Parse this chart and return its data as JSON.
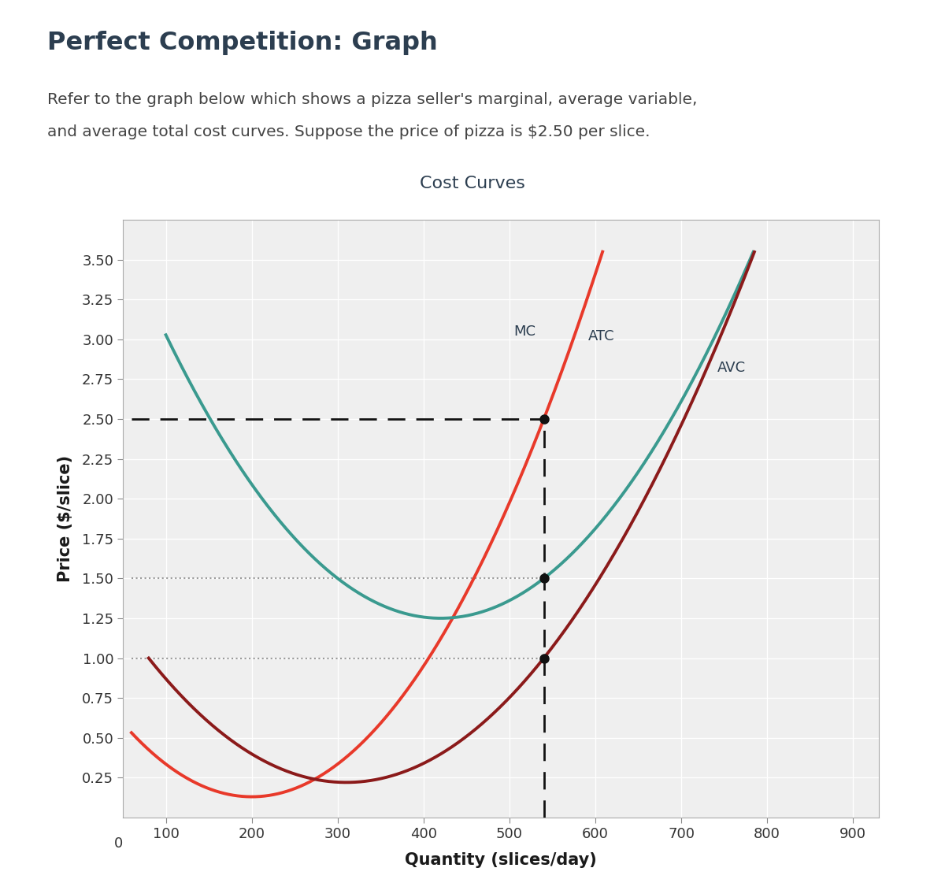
{
  "title": "Cost Curves",
  "page_title": "Perfect Competition: Graph",
  "page_subtitle_line1": "Refer to the graph below which shows a pizza seller's marginal, average variable,",
  "page_subtitle_line2": "and average total cost curves. Suppose the price of pizza is $2.50 per slice.",
  "xlabel": "Quantity (slices/day)",
  "ylabel": "Price ($/slice)",
  "xlim": [
    50,
    930
  ],
  "ylim": [
    0,
    3.75
  ],
  "xticks": [
    100,
    200,
    300,
    400,
    500,
    600,
    700,
    800,
    900
  ],
  "yticks": [
    0.25,
    0.5,
    0.75,
    1.0,
    1.25,
    1.5,
    1.75,
    2.0,
    2.25,
    2.5,
    2.75,
    3.0,
    3.25,
    3.5
  ],
  "price_line": 2.5,
  "equilibrium_qty": 540,
  "mc_color": "#e8392a",
  "atc_color": "#3a9a8f",
  "avc_color": "#8b1a1a",
  "label_color": "#2c3e50",
  "title_color": "#2c3e50",
  "plot_bg_color": "#efefef",
  "mc_label": "MC",
  "atc_label": "ATC",
  "avc_label": "AVC",
  "mc_q_min": 200,
  "mc_min_val": 0.13,
  "atc_q_min": 420,
  "atc_min_val": 1.25,
  "avc_q_min": 310,
  "avc_min_val": 0.22,
  "atc_at_eq": 1.5,
  "avc_at_eq": 1.0
}
